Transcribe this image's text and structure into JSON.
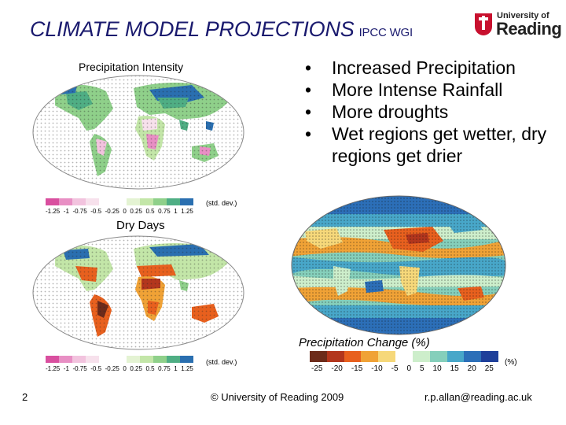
{
  "slide": {
    "title": "CLIMATE MODEL PROJECTIONS",
    "title_suffix": "IPCC WGI",
    "logo": {
      "line1": "University of",
      "line2": "Reading",
      "crest_color": "#c8102e"
    }
  },
  "maps": {
    "precip_intensity": {
      "label": "Precipitation Intensity",
      "colorbar_ticks": [
        "-1.25",
        "-1",
        "-0.75",
        "-0.5",
        "-0.25",
        "0",
        "0.25",
        "0.5",
        "0.75",
        "1",
        "1.25"
      ],
      "colorbar_unit": "(std. dev.)"
    },
    "dry_days": {
      "label": "Dry Days",
      "colorbar_ticks": [
        "-1.25",
        "-1",
        "-0.75",
        "-0.5",
        "-0.25",
        "0",
        "0.25",
        "0.5",
        "0.75",
        "1",
        "1.25"
      ],
      "colorbar_unit": "(std. dev.)"
    },
    "precip_change": {
      "label": "Precipitation Change (%)",
      "colorbar_ticks": [
        "-25",
        "-20",
        "-15",
        "-10",
        "-5",
        "0",
        "5",
        "10",
        "15",
        "20",
        "25"
      ],
      "colorbar_unit": "(%)"
    }
  },
  "bullets": [
    "Increased Precipitation",
    "More Intense Rainfall",
    "More droughts",
    "Wet regions get wetter, dry regions get drier"
  ],
  "footer": {
    "page": "2",
    "copyright": "© University of Reading 2009",
    "email": "r.p.allan@reading.ac.uk"
  },
  "colors": {
    "title": "#1a1a6e",
    "std_scale": [
      "#d94f9f",
      "#e88fc4",
      "#f2c3de",
      "#f7e1ec",
      "#ffffff",
      "#ffffff",
      "#e4f3d3",
      "#c3e6a8",
      "#8fd08a",
      "#4fae84",
      "#2a6fb0"
    ],
    "pct_scale": [
      "#6d2b1a",
      "#b3361d",
      "#e8601e",
      "#f0a236",
      "#f6d87a",
      "#ffffff",
      "#cdeecb",
      "#85cfbb",
      "#48a7c9",
      "#2c6fb8",
      "#1e3f9a"
    ]
  }
}
